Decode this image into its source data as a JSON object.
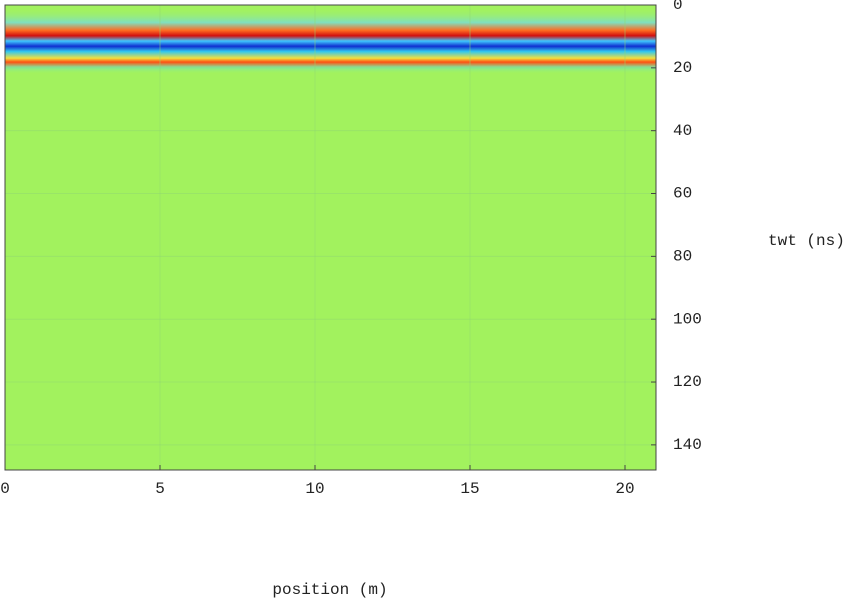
{
  "chart_data": {
    "type": "heatmap",
    "xlabel": "position (m)",
    "ylabel": "twt (ns)",
    "xlim": [
      0,
      21
    ],
    "xticks": [
      0,
      5,
      10,
      15,
      20
    ],
    "ylim": [
      0,
      148
    ],
    "yticks": [
      0,
      20,
      40,
      60,
      80,
      100,
      120,
      140
    ],
    "yaxis_reversed": true,
    "yaxis_side": "right",
    "grid": true,
    "color": "#a2f25e"
  }
}
